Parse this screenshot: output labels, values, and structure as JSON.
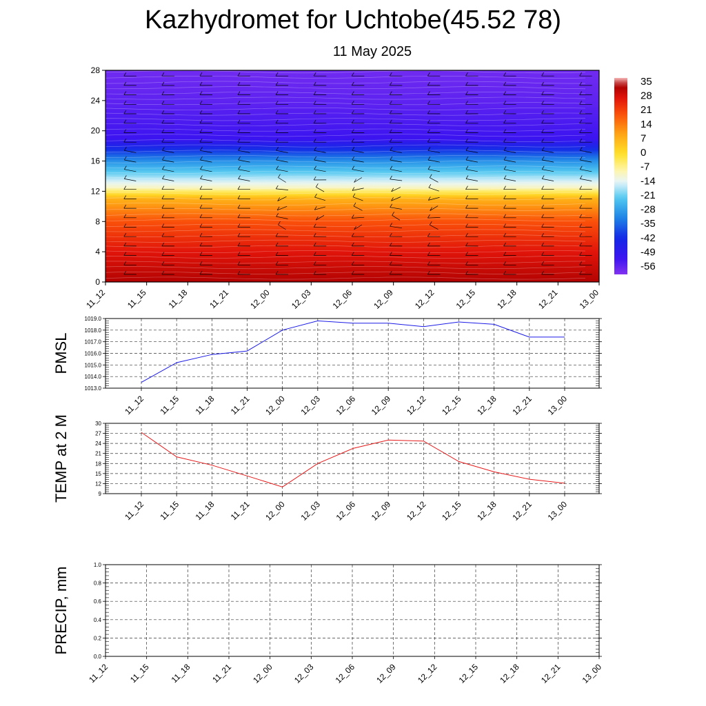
{
  "title": "Kazhydromet for Uchtobe(45.52 78)",
  "subtitle": "11 May 2025",
  "colors": {
    "pmsl_line": "#1a1ae6",
    "temp_line": "#e61a1a",
    "precip_line": "#1a7a1a",
    "grid": "#333333"
  },
  "time_labels": [
    "11_12",
    "11_15",
    "11_18",
    "11_21",
    "12_00",
    "12_03",
    "12_06",
    "12_09",
    "12_12",
    "12_15",
    "12_18",
    "12_21",
    "13_00"
  ],
  "chart_data": [
    {
      "type": "heatmap",
      "title": "",
      "xlabel": "",
      "ylabel": "",
      "x": [
        "11_12",
        "11_15",
        "11_18",
        "11_21",
        "12_00",
        "12_03",
        "12_06",
        "12_09",
        "12_12",
        "12_15",
        "12_18",
        "12_21",
        "13_00"
      ],
      "yticks": [
        0,
        4,
        8,
        12,
        16,
        20,
        24,
        28
      ],
      "ylim": [
        0,
        28
      ],
      "colorbar": {
        "labels": [
          "35",
          "28",
          "21",
          "14",
          "7",
          "0",
          "-7",
          "-14",
          "-21",
          "-28",
          "-35",
          "-42",
          "-49",
          "-56"
        ],
        "range": [
          -60,
          38
        ]
      },
      "temperature_profile": [
        {
          "y": 0,
          "value": 33
        },
        {
          "y": 4,
          "value": 28
        },
        {
          "y": 8,
          "value": 20
        },
        {
          "y": 11,
          "value": 8
        },
        {
          "y": 12.5,
          "value": -10
        },
        {
          "y": 16,
          "value": -30
        },
        {
          "y": 19,
          "value": -52
        },
        {
          "y": 24,
          "value": -56
        },
        {
          "y": 28,
          "value": -58
        }
      ],
      "wind_barbs": true
    },
    {
      "type": "line",
      "ylabel": "PMSL",
      "x": [
        "11_12",
        "11_15",
        "11_18",
        "11_21",
        "12_00",
        "12_03",
        "12_06",
        "12_09",
        "12_12",
        "12_15",
        "12_18",
        "12_21",
        "13_00"
      ],
      "yticks": [
        "1013.0",
        "1014.0",
        "1015.0",
        "1016.0",
        "1017.0",
        "1018.0",
        "1019.0"
      ],
      "ylim": [
        1013,
        1019
      ],
      "series": [
        {
          "values": [
            1013.5,
            1015.2,
            1015.9,
            1016.2,
            1018.0,
            1018.8,
            1018.6,
            1018.6,
            1018.3,
            1018.7,
            1018.5,
            1017.4,
            1017.4
          ]
        }
      ]
    },
    {
      "type": "line",
      "ylabel": "TEMP at 2 M",
      "x": [
        "11_12",
        "11_15",
        "11_18",
        "11_21",
        "12_00",
        "12_03",
        "12_06",
        "12_09",
        "12_12",
        "12_15",
        "12_18",
        "12_21",
        "13_00"
      ],
      "yticks": [
        "9",
        "12",
        "15",
        "18",
        "21",
        "24",
        "27",
        "30"
      ],
      "ylim": [
        9,
        30
      ],
      "series": [
        {
          "values": [
            27.3,
            20.0,
            17.5,
            14.3,
            11.0,
            18.0,
            22.5,
            25.0,
            24.7,
            18.6,
            15.5,
            13.3,
            12.1
          ]
        }
      ]
    },
    {
      "type": "line",
      "ylabel": "PRECIP, mm",
      "x": [
        "11_12",
        "11_15",
        "11_18",
        "11_21",
        "12_00",
        "12_03",
        "12_06",
        "12_09",
        "12_12",
        "12_15",
        "12_18",
        "12_21",
        "13_00"
      ],
      "yticks": [
        "0.0",
        "0.2",
        "0.4",
        "0.6",
        "0.8",
        "1.0"
      ],
      "ylim": [
        0,
        1
      ],
      "series": [
        {
          "values": [
            0,
            0,
            0,
            0,
            0,
            0,
            0,
            0,
            0,
            0,
            0,
            0,
            0
          ]
        }
      ]
    }
  ]
}
